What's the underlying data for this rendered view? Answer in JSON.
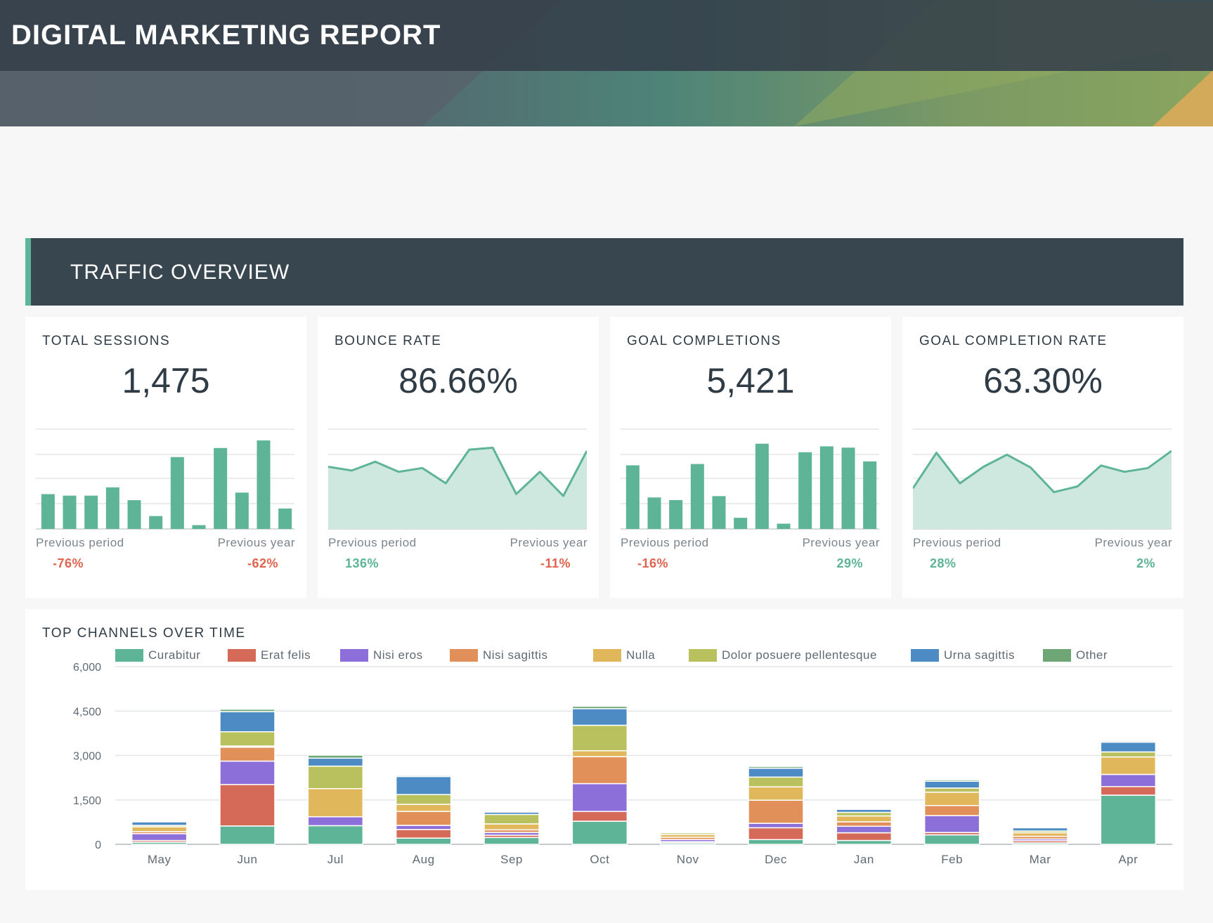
{
  "header": {
    "title": "DIGITAL MARKETING REPORT"
  },
  "section": {
    "title": "TRAFFIC OVERVIEW"
  },
  "colors": {
    "accent": "#5db496",
    "negative": "#e0634e",
    "positive": "#5db496",
    "header_dark": "#384650"
  },
  "cards": [
    {
      "title": "TOTAL SESSIONS",
      "value": "1,475",
      "chart": "bar",
      "series": [
        46,
        44,
        44,
        55,
        38,
        17,
        95,
        5,
        107,
        48,
        117,
        27
      ],
      "ymax": 130,
      "prev_period_label": "Previous period",
      "prev_period_value": "-76%",
      "prev_period_sign": "negative",
      "prev_year_label": "Previous year",
      "prev_year_value": "-62%",
      "prev_year_sign": "negative"
    },
    {
      "title": "BOUNCE RATE",
      "value": "86.66%",
      "chart": "area",
      "series": [
        98,
        92,
        106,
        90,
        96,
        72,
        125,
        128,
        55,
        90,
        52,
        123
      ],
      "ymax": 155,
      "prev_period_label": "Previous period",
      "prev_period_value": "136%",
      "prev_period_sign": "positive",
      "prev_year_label": "Previous year",
      "prev_year_value": "-11%",
      "prev_year_sign": "negative"
    },
    {
      "title": "GOAL COMPLETIONS",
      "value": "5,421",
      "chart": "bar",
      "series": [
        97,
        48,
        44,
        99,
        50,
        17,
        130,
        8,
        117,
        126,
        124,
        103
      ],
      "ymax": 150,
      "prev_period_label": "Previous period",
      "prev_period_value": "-16%",
      "prev_period_sign": "negative",
      "prev_year_label": "Previous year",
      "prev_year_value": "29%",
      "prev_year_sign": "positive"
    },
    {
      "title": "GOAL COMPLETION RATE",
      "value": "63.30%",
      "chart": "area",
      "series": [
        64,
        120,
        72,
        98,
        117,
        97,
        58,
        67,
        100,
        90,
        96,
        123
      ],
      "ymax": 155,
      "prev_period_label": "Previous period",
      "prev_period_value": "28%",
      "prev_period_sign": "positive",
      "prev_year_label": "Previous year",
      "prev_year_value": "2%",
      "prev_year_sign": "positive"
    }
  ],
  "chart_data": {
    "type": "bar",
    "stacked": true,
    "title": "TOP CHANNELS OVER TIME",
    "ylim": [
      0,
      6000
    ],
    "yticks": [
      0,
      1500,
      3000,
      4500,
      6000
    ],
    "ytick_labels": [
      "0",
      "1,500",
      "3,000",
      "4,500",
      "6,000"
    ],
    "categories": [
      "May",
      "Jun",
      "Jul",
      "Aug",
      "Sep",
      "Oct",
      "Nov",
      "Dec",
      "Jan",
      "Feb",
      "Mar",
      "Apr"
    ],
    "series": [
      {
        "name": "Curabitur",
        "color": "#5db496",
        "values": [
          70,
          620,
          630,
          210,
          230,
          780,
          50,
          160,
          130,
          320,
          50,
          1660
        ]
      },
      {
        "name": "Erat felis",
        "color": "#d56a59",
        "values": [
          60,
          1400,
          0,
          290,
          80,
          330,
          40,
          400,
          260,
          80,
          70,
          290
        ]
      },
      {
        "name": "Nisi eros",
        "color": "#8c6fd9",
        "values": [
          230,
          790,
          300,
          140,
          90,
          940,
          70,
          150,
          220,
          570,
          60,
          410
        ]
      },
      {
        "name": "Nisi sagittis",
        "color": "#e09058",
        "values": [
          70,
          470,
          0,
          470,
          90,
          910,
          80,
          780,
          150,
          340,
          90,
          0
        ]
      },
      {
        "name": "Nulla",
        "color": "#e0b75a",
        "values": [
          160,
          40,
          950,
          240,
          200,
          200,
          90,
          450,
          200,
          450,
          120,
          590
        ]
      },
      {
        "name": "Dolor posuere pellentesque",
        "color": "#b8c15e",
        "values": [
          50,
          480,
          760,
          330,
          320,
          860,
          60,
          330,
          120,
          140,
          60,
          170
        ]
      },
      {
        "name": "Urna sagittis",
        "color": "#4d8bc4",
        "values": [
          120,
          680,
          270,
          610,
          80,
          560,
          30,
          300,
          100,
          230,
          110,
          330
        ]
      },
      {
        "name": "Other",
        "color": "#6fa676",
        "values": [
          20,
          80,
          100,
          40,
          10,
          80,
          20,
          60,
          20,
          50,
          30,
          40
        ]
      }
    ]
  }
}
